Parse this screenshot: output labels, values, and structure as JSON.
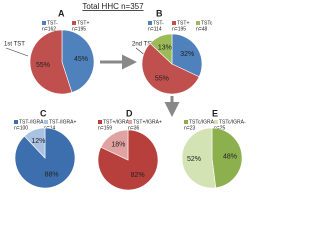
{
  "title": "Total HHC n=357",
  "annotations": [
    "1st TST",
    "2nd TST"
  ],
  "chart_data": [
    {
      "type": "pie",
      "title": "A",
      "categories": [
        "TST-",
        "TST+"
      ],
      "legend_notes": [
        "n=162",
        "n=195"
      ],
      "values": [
        45,
        55
      ],
      "value_labels": [
        "45%",
        "55%"
      ],
      "colors": [
        "#4f81bd",
        "#c0504d"
      ]
    },
    {
      "type": "pie",
      "title": "B",
      "categories": [
        "TST-",
        "TST+",
        "TSTc"
      ],
      "legend_notes": [
        "n=114",
        "n=195",
        "n=48"
      ],
      "values": [
        32,
        55,
        13
      ],
      "value_labels": [
        "32%",
        "55%",
        "13%"
      ],
      "colors": [
        "#4f81bd",
        "#c0504d",
        "#9bbb59"
      ]
    },
    {
      "type": "pie",
      "title": "C",
      "categories": [
        "TST-/IGRA-",
        "TST-/IGRA+"
      ],
      "legend_notes": [
        "n=100",
        "n=14"
      ],
      "values": [
        88,
        12
      ],
      "value_labels": [
        "88%",
        "12%"
      ],
      "colors": [
        "#3d6fae",
        "#a9c2e2"
      ]
    },
    {
      "type": "pie",
      "title": "D",
      "categories": [
        "TST+/IGRA-",
        "TST+/IGRA+"
      ],
      "legend_notes": [
        "n=159",
        "n=36"
      ],
      "values": [
        82,
        18
      ],
      "value_labels": [
        "82%",
        "18%"
      ],
      "colors": [
        "#b8403c",
        "#e0a3a1"
      ]
    },
    {
      "type": "pie",
      "title": "E",
      "categories": [
        "TSTc/IGRA+",
        "TSTc/IGRA-"
      ],
      "legend_notes": [
        "n=23",
        "n=25"
      ],
      "values": [
        48,
        52
      ],
      "value_labels": [
        "48%",
        "52%"
      ],
      "colors": [
        "#8db04f",
        "#d3e3b3"
      ]
    }
  ]
}
